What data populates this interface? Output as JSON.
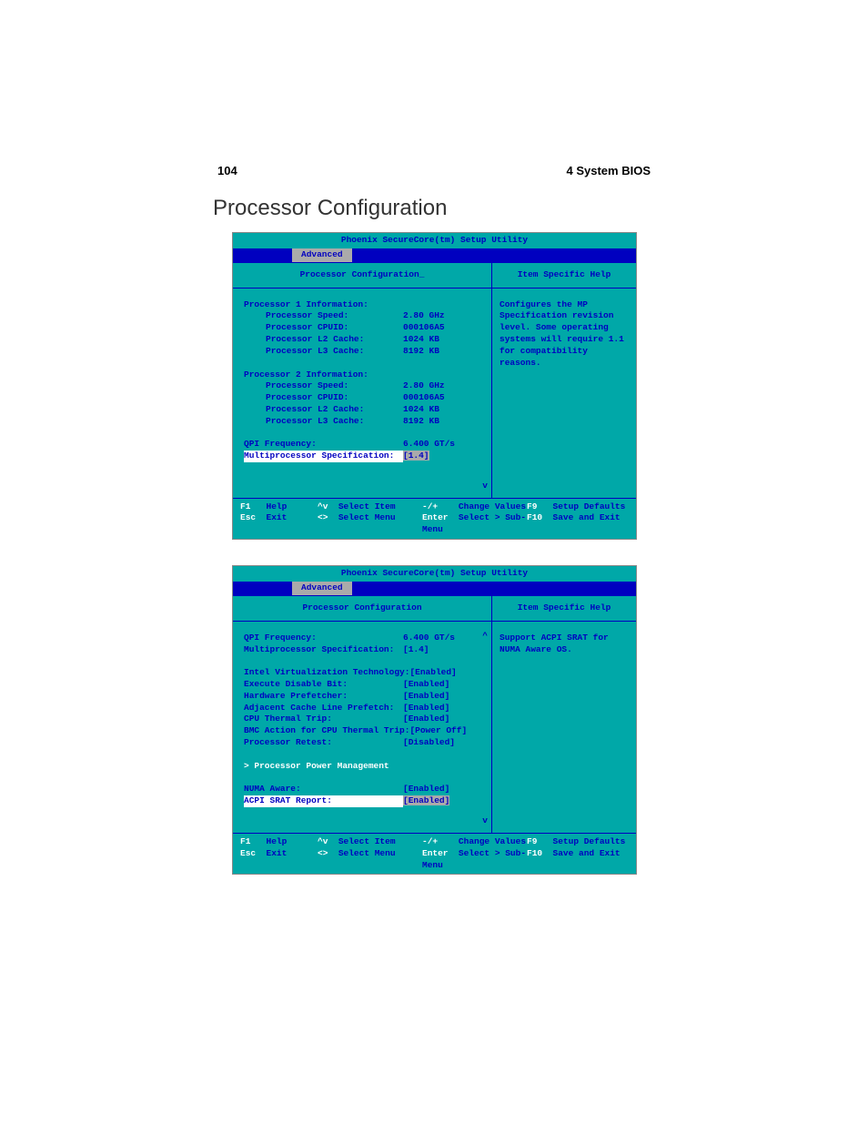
{
  "page": {
    "number": "104",
    "chapter": "4 System BIOS",
    "section_title": "Processor Configuration"
  },
  "colors": {
    "bios_teal": "#00a8a8",
    "bios_blue": "#0000c0",
    "bios_gray": "#aaaaaa",
    "bios_white": "#ffffff"
  },
  "bios": {
    "title": "Phoenix SecureCore(tm) Setup Utility",
    "tab": "Advanced",
    "main_title": "Processor Configuration",
    "help_title": "Item Specific Help",
    "footer": {
      "f1": "F1",
      "help": "Help",
      "upd": "^v",
      "select_item": "Select Item",
      "pm": "-/+",
      "change_values": "Change Values",
      "f9": "F9",
      "setup_defaults": "Setup Defaults",
      "esc": "Esc",
      "exit": "Exit",
      "lr": "<>",
      "select_menu": "Select Menu",
      "enter": "Enter",
      "select_sub": "Select > Sub-Menu",
      "f10": "F10",
      "save_exit": "Save and Exit"
    }
  },
  "screen1": {
    "help_text": "Configures the MP Specification revision level.  Some operating systems will require 1.1 for compatibility reasons.",
    "p1_header": "Processor 1 Information:",
    "p2_header": "Processor 2 Information:",
    "speed_label": "Processor Speed:",
    "cpuid_label": "Processor CPUID:",
    "l2_label": "Processor L2 Cache:",
    "l3_label": "Processor L3 Cache:",
    "p1_speed": "2.80 GHz",
    "p1_cpuid": "000106A5",
    "p1_l2": "1024 KB",
    "p1_l3": "8192 KB",
    "p2_speed": "2.80 GHz",
    "p2_cpuid": "000106A5",
    "p2_l2": "1024 KB",
    "p2_l3": "8192 KB",
    "qpi_label": "QPI Frequency:",
    "qpi_value": "6.400 GT/s",
    "mp_label": "Multiprocessor Specification:",
    "mp_value": "[1.4]"
  },
  "screen2": {
    "help_text": "Support ACPI SRAT for NUMA Aware OS.",
    "qpi_label": "QPI Frequency:",
    "qpi_value": "6.400 GT/s",
    "mp_label": "Multiprocessor Specification:",
    "mp_value": "[1.4]",
    "vt_label": "Intel Virtualization Technology:",
    "vt_value": "[Enabled]",
    "xd_label": "Execute Disable Bit:",
    "xd_value": "[Enabled]",
    "hp_label": "Hardware Prefetcher:",
    "hp_value": "[Enabled]",
    "aclp_label": "Adjacent Cache Line Prefetch:",
    "aclp_value": "[Enabled]",
    "ctt_label": "CPU Thermal Trip:",
    "ctt_value": "[Enabled]",
    "bmc_label": "BMC Action for CPU Thermal Trip:",
    "bmc_value": "[Power Off]",
    "pr_label": "Processor Retest:",
    "pr_value": "[Disabled]",
    "ppm_label": "> Processor Power Management",
    "numa_label": "NUMA Aware:",
    "numa_value": "[Enabled]",
    "srat_label": "ACPI SRAT Report:",
    "srat_value": "[Enabled]"
  }
}
